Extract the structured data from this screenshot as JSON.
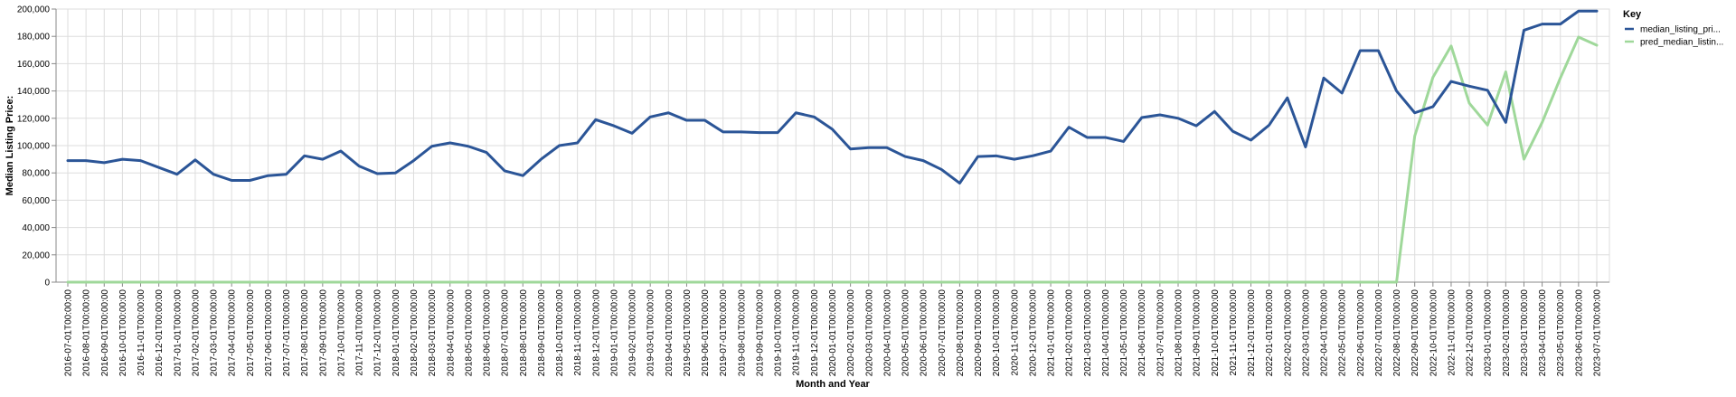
{
  "chart_data": {
    "type": "line",
    "xlabel": "Month and Year",
    "ylabel": "Median Listing Price:",
    "ylim": [
      0,
      200000
    ],
    "y_ticks": [
      "0",
      "20,000",
      "40,000",
      "60,000",
      "80,000",
      "100,000",
      "120,000",
      "140,000",
      "160,000",
      "180,000",
      "200,000"
    ],
    "grid": true,
    "legend": {
      "title": "Key",
      "placement": "right"
    },
    "x": [
      "2016-07-01T00:00:00",
      "2016-08-01T00:00:00",
      "2016-09-01T00:00:00",
      "2016-10-01T00:00:00",
      "2016-11-01T00:00:00",
      "2016-12-01T00:00:00",
      "2017-01-01T00:00:00",
      "2017-02-01T00:00:00",
      "2017-03-01T00:00:00",
      "2017-04-01T00:00:00",
      "2017-05-01T00:00:00",
      "2017-06-01T00:00:00",
      "2017-07-01T00:00:00",
      "2017-08-01T00:00:00",
      "2017-09-01T00:00:00",
      "2017-10-01T00:00:00",
      "2017-11-01T00:00:00",
      "2017-12-01T00:00:00",
      "2018-01-01T00:00:00",
      "2018-02-01T00:00:00",
      "2018-03-01T00:00:00",
      "2018-04-01T00:00:00",
      "2018-05-01T00:00:00",
      "2018-06-01T00:00:00",
      "2018-07-01T00:00:00",
      "2018-08-01T00:00:00",
      "2018-09-01T00:00:00",
      "2018-10-01T00:00:00",
      "2018-11-01T00:00:00",
      "2018-12-01T00:00:00",
      "2019-01-01T00:00:00",
      "2019-02-01T00:00:00",
      "2019-03-01T00:00:00",
      "2019-04-01T00:00:00",
      "2019-05-01T00:00:00",
      "2019-06-01T00:00:00",
      "2019-07-01T00:00:00",
      "2019-08-01T00:00:00",
      "2019-09-01T00:00:00",
      "2019-10-01T00:00:00",
      "2019-11-01T00:00:00",
      "2019-12-01T00:00:00",
      "2020-01-01T00:00:00",
      "2020-02-01T00:00:00",
      "2020-03-01T00:00:00",
      "2020-04-01T00:00:00",
      "2020-05-01T00:00:00",
      "2020-06-01T00:00:00",
      "2020-07-01T00:00:00",
      "2020-08-01T00:00:00",
      "2020-09-01T00:00:00",
      "2020-10-01T00:00:00",
      "2020-11-01T00:00:00",
      "2020-12-01T00:00:00",
      "2021-01-01T00:00:00",
      "2021-02-01T00:00:00",
      "2021-03-01T00:00:00",
      "2021-04-01T00:00:00",
      "2021-05-01T00:00:00",
      "2021-06-01T00:00:00",
      "2021-07-01T00:00:00",
      "2021-08-01T00:00:00",
      "2021-09-01T00:00:00",
      "2021-10-01T00:00:00",
      "2021-11-01T00:00:00",
      "2021-12-01T00:00:00",
      "2022-01-01T00:00:00",
      "2022-02-01T00:00:00",
      "2022-03-01T00:00:00",
      "2022-04-01T00:00:00",
      "2022-05-01T00:00:00",
      "2022-06-01T00:00:00",
      "2022-07-01T00:00:00",
      "2022-08-01T00:00:00",
      "2022-09-01T00:00:00",
      "2022-10-01T00:00:00",
      "2022-11-01T00:00:00",
      "2022-12-01T00:00:00",
      "2023-01-01T00:00:00",
      "2023-02-01T00:00:00",
      "2023-03-01T00:00:00",
      "2023-04-01T00:00:00",
      "2023-05-01T00:00:00",
      "2023-06-01T00:00:00",
      "2023-07-01T00:00:00"
    ],
    "series": [
      {
        "name": "median_listing_pri...",
        "color": "#2b5597",
        "values": [
          89000,
          89000,
          87500,
          90000,
          89000,
          84000,
          79000,
          89500,
          79000,
          74500,
          74500,
          78000,
          79000,
          92500,
          90000,
          96000,
          85000,
          79500,
          80000,
          89000,
          99500,
          102000,
          99500,
          95000,
          81500,
          78000,
          90000,
          100000,
          102000,
          119000,
          114500,
          109000,
          121000,
          124000,
          118500,
          118500,
          110000,
          110000,
          109500,
          109500,
          124000,
          121000,
          112000,
          97500,
          98500,
          98500,
          92000,
          89000,
          82500,
          72500,
          92000,
          92500,
          90000,
          92500,
          96000,
          113500,
          106000,
          106000,
          103000,
          120500,
          122500,
          120000,
          114500,
          125000,
          110500,
          104000,
          115000,
          135000,
          99000,
          149500,
          138500,
          169500,
          169500,
          140000,
          124000,
          128500,
          147000,
          143500,
          140500,
          117000,
          184500,
          189000,
          189000,
          198500,
          198500
        ]
      },
      {
        "name": "pred_median_listin...",
        "color": "#9fd89a",
        "values": [
          0,
          0,
          0,
          0,
          0,
          0,
          0,
          0,
          0,
          0,
          0,
          0,
          0,
          0,
          0,
          0,
          0,
          0,
          0,
          0,
          0,
          0,
          0,
          0,
          0,
          0,
          0,
          0,
          0,
          0,
          0,
          0,
          0,
          0,
          0,
          0,
          0,
          0,
          0,
          0,
          0,
          0,
          0,
          0,
          0,
          0,
          0,
          0,
          0,
          0,
          0,
          0,
          0,
          0,
          0,
          0,
          0,
          0,
          0,
          0,
          0,
          0,
          0,
          0,
          0,
          0,
          0,
          0,
          0,
          0,
          0,
          0,
          0,
          0,
          107000,
          150000,
          173000,
          131000,
          115000,
          154000,
          90000,
          117000,
          149500,
          179500,
          173500
        ]
      }
    ]
  }
}
